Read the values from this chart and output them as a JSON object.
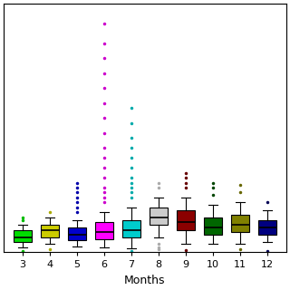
{
  "months": [
    3,
    4,
    5,
    6,
    7,
    8,
    9,
    10,
    11,
    12
  ],
  "colors": [
    "#00dd00",
    "#cccc00",
    "#0000cc",
    "#ff00ff",
    "#00cccc",
    "#cccccc",
    "#8b0000",
    "#006600",
    "#808000",
    "#000080"
  ],
  "flier_colors": [
    "#00bb00",
    "#aaaa00",
    "#0000aa",
    "#cc00cc",
    "#00aaaa",
    "#aaaaaa",
    "#660000",
    "#004400",
    "#666600",
    "#000055"
  ],
  "xlabel": "Months",
  "stats": [
    {
      "med": 1.5,
      "q1": 1.0,
      "q3": 2.2,
      "whislo": 0.5,
      "whishi": 2.8,
      "fliers": [
        3.2,
        3.5,
        0.1,
        0.05
      ]
    },
    {
      "med": 2.2,
      "q1": 1.5,
      "q3": 2.8,
      "whislo": 0.8,
      "whishi": 3.5,
      "fliers": [
        4.0,
        0.3
      ]
    },
    {
      "med": 1.8,
      "q1": 1.2,
      "q3": 2.5,
      "whislo": 0.6,
      "whishi": 3.2,
      "fliers": [
        4.0,
        4.5,
        5.0,
        5.5,
        6.0,
        6.5,
        7.0
      ]
    },
    {
      "med": 2.0,
      "q1": 1.3,
      "q3": 3.0,
      "whislo": 0.5,
      "whishi": 4.0,
      "fliers": [
        5.0,
        5.5,
        6.0,
        6.5,
        7.5,
        8.5,
        9.5,
        10.5,
        12.0,
        13.5,
        15.0,
        16.5,
        18.0,
        19.5,
        21.0,
        23.0
      ]
    },
    {
      "med": 2.2,
      "q1": 1.5,
      "q3": 3.2,
      "whislo": 0.4,
      "whishi": 4.5,
      "fliers": [
        5.5,
        6.0,
        6.5,
        7.0,
        7.5,
        8.5,
        9.5,
        10.5,
        11.5,
        13.0,
        14.5,
        0.1
      ]
    },
    {
      "med": 3.5,
      "q1": 2.8,
      "q3": 4.5,
      "whislo": 1.5,
      "whishi": 5.5,
      "fliers": [
        0.3,
        0.5,
        0.8,
        6.5,
        7.0
      ]
    },
    {
      "med": 3.0,
      "q1": 2.2,
      "q3": 4.2,
      "whislo": 0.8,
      "whishi": 5.5,
      "fliers": [
        6.5,
        7.0,
        7.5,
        8.0,
        0.2
      ]
    },
    {
      "med": 2.5,
      "q1": 1.8,
      "q3": 3.5,
      "whislo": 0.8,
      "whishi": 4.8,
      "fliers": [
        5.8,
        6.5,
        7.0
      ]
    },
    {
      "med": 2.8,
      "q1": 2.0,
      "q3": 3.8,
      "whislo": 0.8,
      "whishi": 5.0,
      "fliers": [
        6.0,
        6.8,
        0.3
      ]
    },
    {
      "med": 2.5,
      "q1": 1.8,
      "q3": 3.2,
      "whislo": 1.0,
      "whishi": 4.2,
      "fliers": [
        0.1,
        5.0
      ]
    }
  ],
  "ylim": [
    0,
    25
  ],
  "figsize": [
    3.2,
    3.2
  ],
  "dpi": 100
}
